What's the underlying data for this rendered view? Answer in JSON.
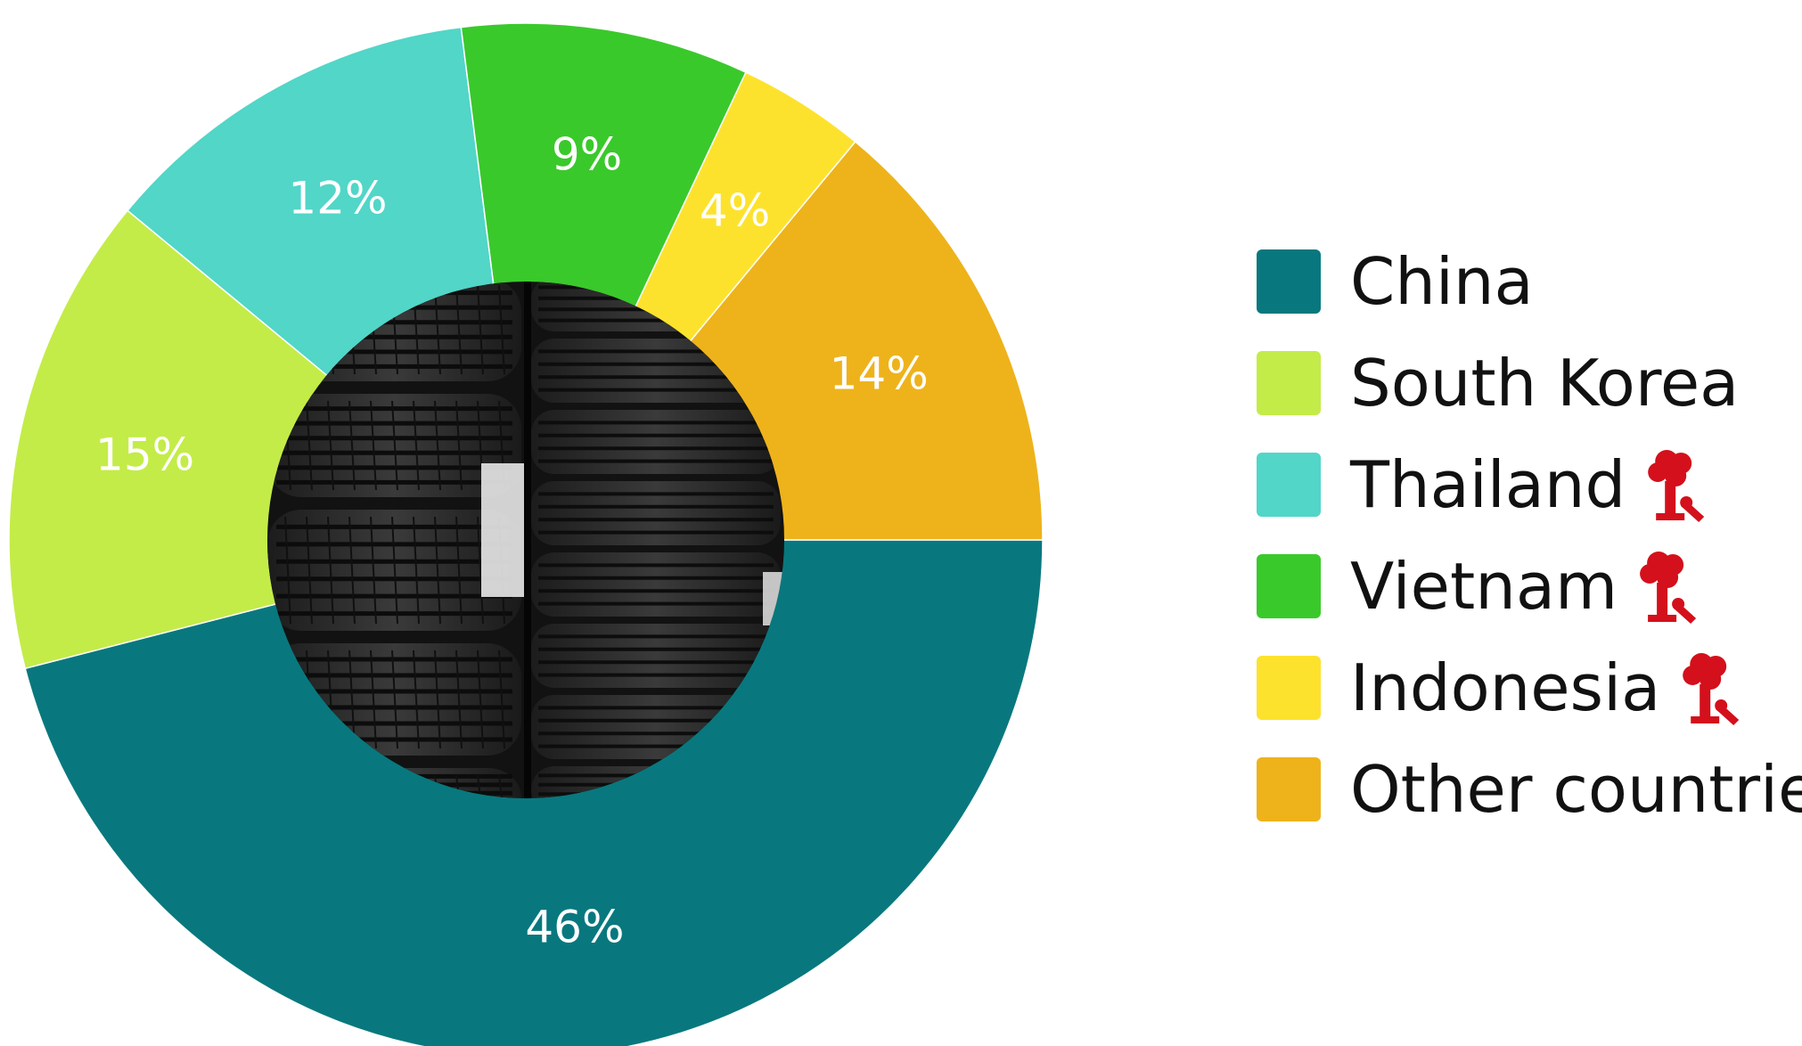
{
  "chart_data": {
    "type": "pie",
    "donut": true,
    "legend_position": "right",
    "categories": [
      "China",
      "South Korea",
      "Thailand",
      "Vietnam",
      "Indonesia",
      "Other countries"
    ],
    "values": [
      46,
      15,
      12,
      9,
      4,
      14
    ],
    "data_labels": [
      "46%",
      "15%",
      "12%",
      "9%",
      "4%",
      "14%"
    ],
    "colors": [
      "#08787e",
      "#c3ec48",
      "#51d6c8",
      "#3ac92b",
      "#fde22d",
      "#eeb31b"
    ],
    "legend_icons": [
      null,
      null,
      "flagged-icon",
      "flagged-icon",
      "flagged-icon",
      null
    ],
    "center_image": "tire-stack-photo",
    "icon_color": "#d3101b"
  }
}
